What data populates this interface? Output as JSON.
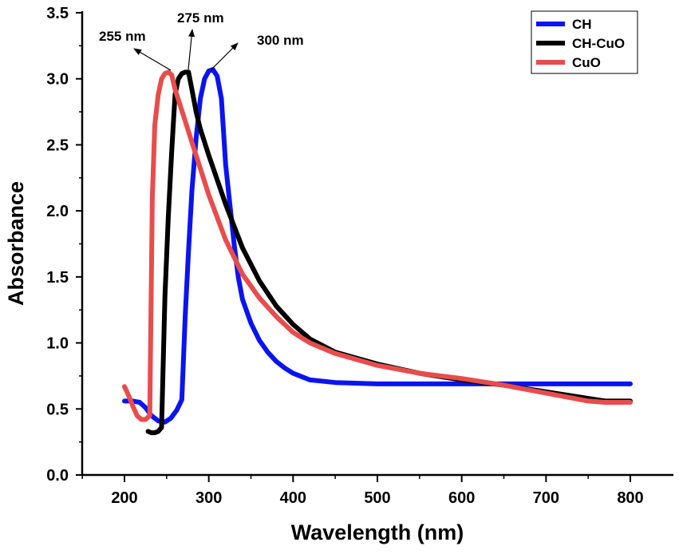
{
  "chart_data": {
    "type": "line",
    "title": "",
    "xlabel": "Wavelength (nm)",
    "ylabel": "Absorbance",
    "xlim": [
      150,
      840
    ],
    "ylim": [
      0,
      3.5
    ],
    "x_ticks": [
      200,
      300,
      400,
      500,
      600,
      700,
      800
    ],
    "x_tick_labels": [
      "200",
      "300",
      "400",
      "500",
      "600",
      "700",
      "800"
    ],
    "y_ticks": [
      0,
      0.5,
      1.0,
      1.5,
      2.0,
      2.5,
      3.0,
      3.5
    ],
    "y_tick_labels": [
      "0.0",
      "0.5",
      "1.0",
      "1.5",
      "2.0",
      "2.5",
      "3.0",
      "3.5"
    ],
    "grid": false,
    "legend_position": "top-right",
    "series": [
      {
        "name": "CH",
        "color": "#0a14f0",
        "x": [
          200,
          210,
          218,
          225,
          232,
          240,
          248,
          255,
          262,
          268,
          272,
          276,
          280,
          285,
          290,
          295,
          300,
          305,
          310,
          315,
          320,
          325,
          330,
          335,
          340,
          350,
          360,
          370,
          380,
          390,
          400,
          420,
          450,
          500,
          600,
          700,
          800
        ],
        "y": [
          0.56,
          0.56,
          0.55,
          0.51,
          0.45,
          0.41,
          0.4,
          0.43,
          0.49,
          0.57,
          1.2,
          1.7,
          2.15,
          2.55,
          2.85,
          3.0,
          3.06,
          3.07,
          3.02,
          2.85,
          2.35,
          2.05,
          1.75,
          1.5,
          1.33,
          1.15,
          1.02,
          0.93,
          0.86,
          0.81,
          0.77,
          0.72,
          0.7,
          0.69,
          0.69,
          0.69,
          0.69
        ]
      },
      {
        "name": "CH-CuO",
        "color": "#000000",
        "x": [
          228,
          232,
          236,
          240,
          244,
          248,
          252,
          256,
          260,
          264,
          268,
          272,
          276,
          280,
          285,
          290,
          300,
          320,
          340,
          360,
          380,
          400,
          420,
          450,
          500,
          550,
          600,
          650,
          700,
          750,
          770,
          800
        ],
        "y": [
          0.33,
          0.32,
          0.32,
          0.33,
          0.36,
          1.35,
          1.95,
          2.45,
          2.88,
          3.0,
          3.04,
          3.05,
          3.05,
          2.92,
          2.75,
          2.62,
          2.42,
          2.05,
          1.72,
          1.47,
          1.28,
          1.14,
          1.03,
          0.93,
          0.84,
          0.77,
          0.72,
          0.68,
          0.63,
          0.58,
          0.56,
          0.56
        ]
      },
      {
        "name": "CuO",
        "color": "#e84c4c",
        "x": [
          200,
          205,
          210,
          215,
          220,
          225,
          230,
          233,
          236,
          240,
          244,
          248,
          252,
          256,
          260,
          270,
          280,
          300,
          320,
          340,
          360,
          380,
          400,
          420,
          450,
          500,
          550,
          600,
          650,
          700,
          750,
          770,
          800
        ],
        "y": [
          0.67,
          0.6,
          0.52,
          0.45,
          0.42,
          0.42,
          0.45,
          2.1,
          2.65,
          2.88,
          3.0,
          3.04,
          3.05,
          3.03,
          2.92,
          2.72,
          2.52,
          2.12,
          1.78,
          1.52,
          1.34,
          1.2,
          1.08,
          1.0,
          0.92,
          0.83,
          0.77,
          0.73,
          0.68,
          0.62,
          0.56,
          0.55,
          0.55
        ]
      }
    ],
    "annotations": [
      {
        "text": "255 nm",
        "x": 255,
        "y": 3.05
      },
      {
        "text": "275 nm",
        "x": 275,
        "y": 3.05
      },
      {
        "text": "300 nm",
        "x": 300,
        "y": 3.07
      }
    ]
  }
}
